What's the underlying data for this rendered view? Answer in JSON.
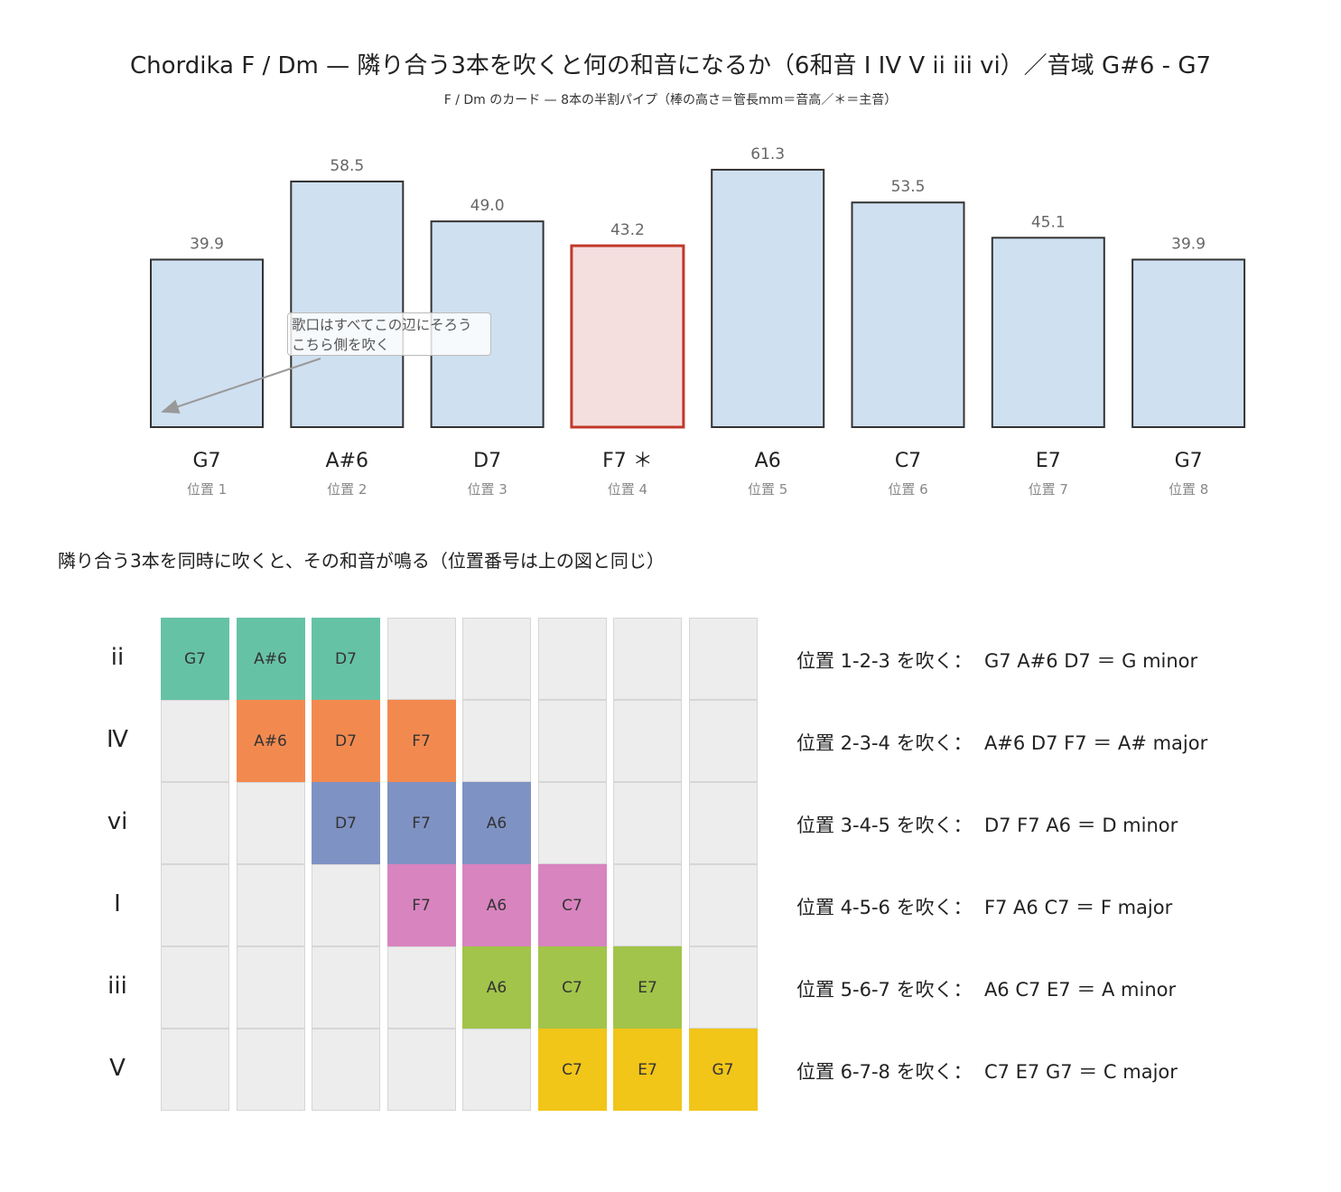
{
  "title": "Chordika F / Dm — 隣り合う3本を吹くと何の和音になるか（6和音 I IV V ii iii vi）／音域 G#6 - G7",
  "subtitle": "F / Dm のカード — 8本の半割パイプ（棒の高さ＝管長mm＝音高／＊＝主音）",
  "callout_text": [
    "歌口はすべてこの辺にそろう",
    "こちら側を吹く"
  ],
  "section_heading": "隣り合う3本を同時に吹くと、その和音が鳴る（位置番号は上の図と同じ）",
  "colors": {
    "bar_fill": "#cfe0f1",
    "bar_stroke": "#333333",
    "root_fill": "#f5dede",
    "root_stroke": "#c0392b",
    "empty_cell": "#ededed"
  },
  "chart_data": {
    "type": "bar",
    "categories": [
      "G7",
      "A#6",
      "D7",
      "F7",
      "A6",
      "C7",
      "E7",
      "G7"
    ],
    "category_labels": [
      "G7",
      "A#6",
      "D7",
      "F7 ＊",
      "A6",
      "C7",
      "E7",
      "G7"
    ],
    "positions": [
      "位置 1",
      "位置 2",
      "位置 3",
      "位置 4",
      "位置 5",
      "位置 6",
      "位置 7",
      "位置 8"
    ],
    "values": [
      39.9,
      58.5,
      49.0,
      43.2,
      61.3,
      53.5,
      45.1,
      39.9
    ],
    "value_labels": [
      "39.9",
      "58.5",
      "49.0",
      "43.2",
      "61.3",
      "53.5",
      "45.1",
      "39.9"
    ],
    "highlight_index": 3,
    "ylim": [
      0,
      64
    ],
    "grid": false
  },
  "chords": [
    {
      "roman": "ii",
      "start": 0,
      "notes": [
        "G7",
        "A#6",
        "D7"
      ],
      "color": "#66c2a5",
      "desc": "位置 1-2-3 を吹く：  G7 A#6 D7 ＝ G minor"
    },
    {
      "roman": "Ⅳ",
      "start": 1,
      "notes": [
        "A#6",
        "D7",
        "F7"
      ],
      "color": "#f28a50",
      "desc": "位置 2-3-4 を吹く：  A#6 D7 F7 ＝ A# major"
    },
    {
      "roman": "vi",
      "start": 2,
      "notes": [
        "D7",
        "F7",
        "A6"
      ],
      "color": "#7f92c4",
      "desc": "位置 3-4-5 を吹く：  D7 F7 A6 ＝ D minor"
    },
    {
      "roman": "I",
      "start": 3,
      "notes": [
        "F7",
        "A6",
        "C7"
      ],
      "color": "#d884bf",
      "desc": "位置 4-5-6 を吹く：  F7 A6 C7 ＝ F major"
    },
    {
      "roman": "iii",
      "start": 4,
      "notes": [
        "A6",
        "C7",
        "E7"
      ],
      "color": "#a2c44a",
      "desc": "位置 5-6-7 を吹く：  A6 C7 E7 ＝ A minor"
    },
    {
      "roman": "V",
      "start": 5,
      "notes": [
        "C7",
        "E7",
        "G7"
      ],
      "color": "#f2c519",
      "desc": "位置 6-7-8 を吹く：  C7 E7 G7 ＝ C major"
    }
  ]
}
